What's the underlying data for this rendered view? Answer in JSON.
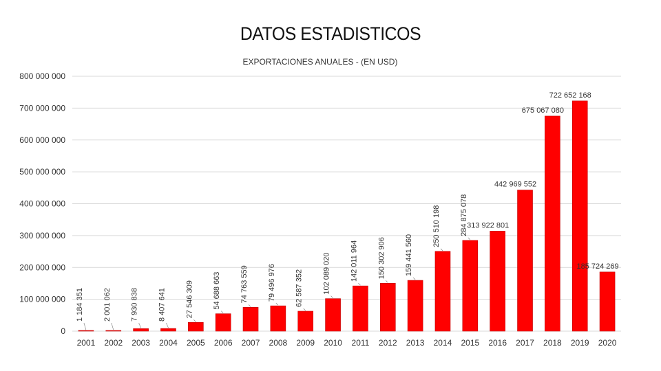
{
  "page_title": "DATOS ESTADISTICOS",
  "colors": {
    "bar": "#ff0000",
    "grid": "#d9d9d9"
  },
  "chart_data": {
    "type": "bar",
    "title": "EXPORTACIONES ANUALES - (EN USD)",
    "xlabel": "",
    "ylabel": "",
    "ylim": [
      0,
      800000000
    ],
    "y_ticks": [
      0,
      100000000,
      200000000,
      300000000,
      400000000,
      500000000,
      600000000,
      700000000,
      800000000
    ],
    "y_tick_labels": [
      "0",
      "100 000 000",
      "200 000 000",
      "300 000 000",
      "400 000 000",
      "500 000 000",
      "600 000 000",
      "700 000 000",
      "800 000 000"
    ],
    "grid": true,
    "legend": "none",
    "categories": [
      "2001",
      "2002",
      "2003",
      "2004",
      "2005",
      "2006",
      "2007",
      "2008",
      "2009",
      "2010",
      "2011",
      "2012",
      "2013",
      "2014",
      "2015",
      "2016",
      "2017",
      "2018",
      "2019",
      "2020"
    ],
    "values": [
      1184351,
      2001062,
      7930838,
      8407641,
      27546309,
      54688663,
      74763559,
      79496976,
      62587352,
      102089020,
      142011964,
      150302906,
      159441560,
      250510198,
      284875078,
      313922801,
      442969552,
      675067080,
      722652168,
      185724269
    ],
    "value_labels": [
      "1 184 351",
      "2 001 062",
      "7 930 838",
      "8 407 641",
      "27 546 309",
      "54 688 663",
      "74 763 559",
      "79 496 976",
      "62 587 352",
      "102 089 020",
      "142 011 964",
      "150 302 906",
      "159 441 560",
      "250 510 198",
      "284 875 078",
      "313 922 801",
      "442 969 552",
      "675 067 080",
      "722 652 168",
      "185 724 269"
    ],
    "label_orientation": [
      "vertical",
      "vertical",
      "vertical",
      "vertical",
      "vertical",
      "vertical",
      "vertical",
      "vertical",
      "vertical",
      "vertical",
      "vertical",
      "vertical",
      "vertical",
      "vertical",
      "vertical",
      "horizontal",
      "horizontal",
      "horizontal",
      "horizontal",
      "horizontal"
    ]
  }
}
